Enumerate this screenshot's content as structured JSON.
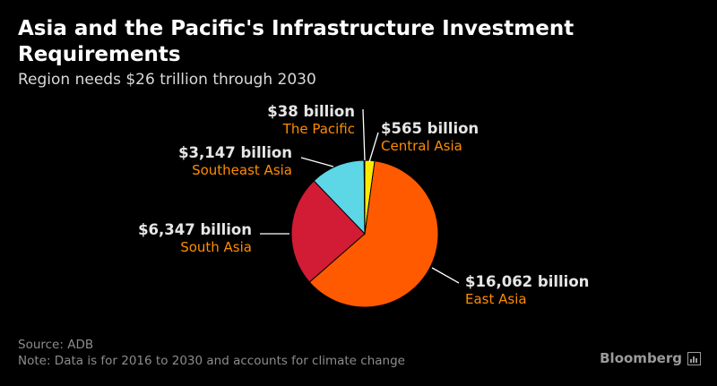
{
  "header": {
    "title": "Asia and the Pacific's Infrastructure Investment Requirements",
    "subtitle": "Region needs $26 trillion through 2030"
  },
  "chart_data": {
    "type": "pie",
    "title": "Asia and the Pacific's Infrastructure Investment Requirements",
    "subtitle": "Region needs $26 trillion through 2030",
    "start_angle_deg": 0,
    "direction": "clockwise",
    "slices": [
      {
        "name": "Central Asia",
        "value": 565,
        "value_label": "$565 billion",
        "color": "#FFEB00"
      },
      {
        "name": "East Asia",
        "value": 16062,
        "value_label": "$16,062 billion",
        "color": "#FF5A00"
      },
      {
        "name": "South Asia",
        "value": 6347,
        "value_label": "$6,347 billion",
        "color": "#D21B35"
      },
      {
        "name": "Southeast Asia",
        "value": 3147,
        "value_label": "$3,147 billion",
        "color": "#5DD6E6"
      },
      {
        "name": "The Pacific",
        "value": 38,
        "value_label": "$38 billion",
        "color": "#1F4FFF"
      }
    ],
    "label_colors": {
      "value": "#E6E6E6",
      "name": "#FF8C00",
      "leader": "#FFFFFF"
    }
  },
  "footer": {
    "source": "Source: ADB",
    "note": "Note: Data is for 2016 to 2030 and accounts for climate change",
    "brand": "Bloomberg"
  }
}
